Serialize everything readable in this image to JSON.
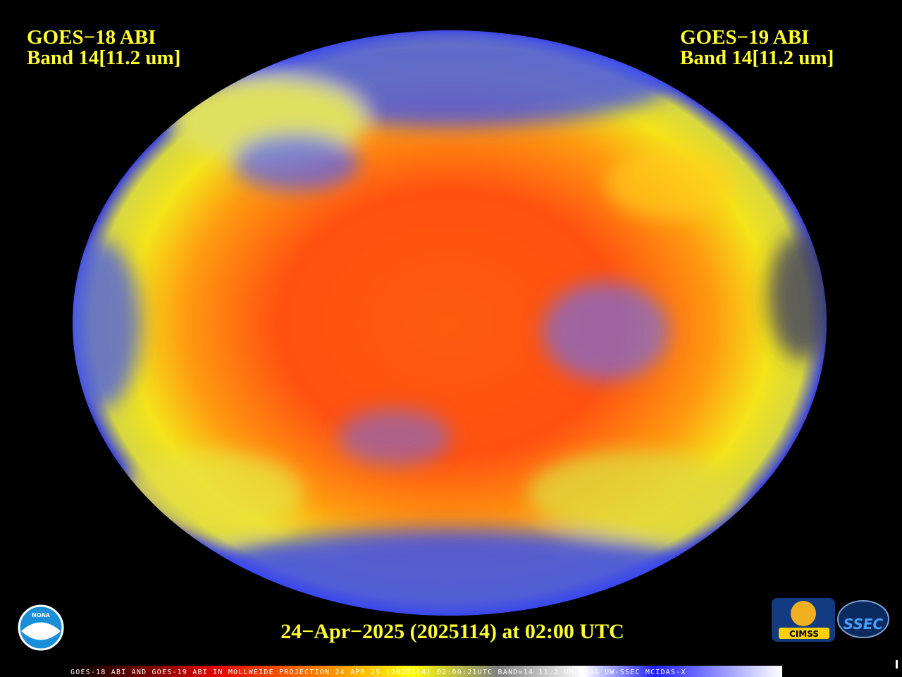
{
  "header": {
    "left": {
      "line1": "GOES−18 ABI",
      "line2": "Band 14[11.2 um]"
    },
    "right": {
      "line1": "GOES−19 ABI",
      "line2": "Band 14[11.2 um]"
    }
  },
  "timestamp": "24−Apr−2025 (2025114) at 02:00 UTC",
  "footer": "GOES-18 ABI AND GOES-19 ABI IN MOLLWEIDE PROJECTION 24 APR 25 (2025114) 02:00:21UTC BAND=14 11.2 UM NOAA UW-SSEC MCIDAS-X",
  "logos": {
    "noaa": "NOAA",
    "cimss": "CIMSS",
    "ssec": "SSEC"
  }
}
